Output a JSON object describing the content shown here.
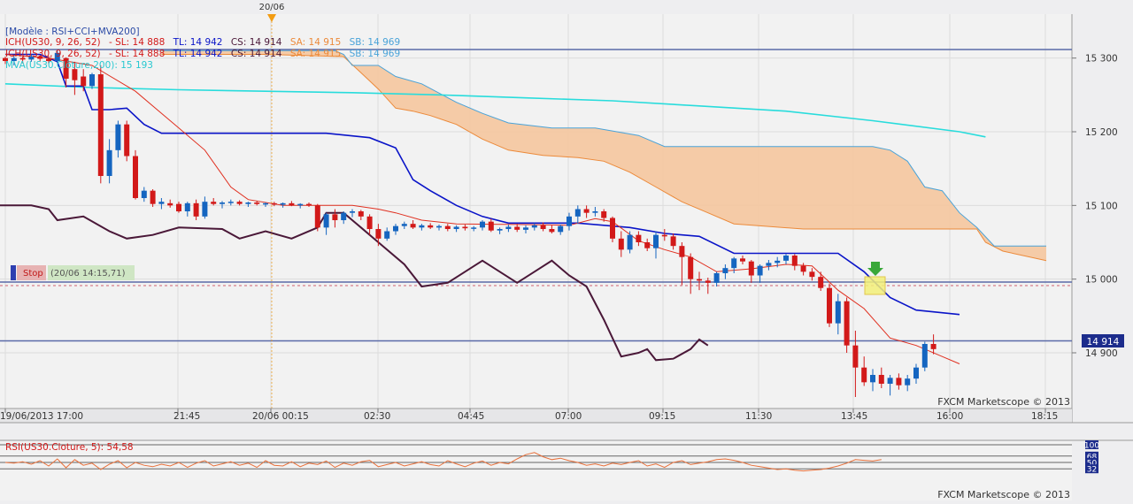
{
  "top_marker": {
    "label": "20/06"
  },
  "legend": {
    "model": "[Modèle : RSI+CCI+MVA200]",
    "ich1": {
      "name": "ICH(US30, 9, 26, 52)",
      "sl": "- SL: 14 888",
      "tl": "TL: 14 942",
      "cs": "CS: 14 914",
      "sa": "SA: 14 915",
      "sb": "SB: 14 969"
    },
    "ich2": {
      "name": "ICH(US30, 9, 26, 52)",
      "sl": "- SL: 14 888",
      "tl": "TL: 14 942",
      "cs": "CS: 14 914",
      "sa": "SA: 14 915",
      "sb": "SB: 14 969"
    },
    "mva": "MVA(US30.Clôture,200): 15 193"
  },
  "stop": {
    "label": "Stop",
    "time": "(20/06 14:15,71)"
  },
  "watermark": "FXCM Marketscope © 2013",
  "rsi_label": "RSI(US30.Cloture, 5): 54,58",
  "current_price": "14 914",
  "colors": {
    "bull": "#1565c0",
    "bear": "#d21919",
    "tenkan": "#e03020",
    "kijun": "#0a14c8",
    "chikou": "#4a1838",
    "cloud_fill": "#f5c79e",
    "span_a": "#ec8a3a",
    "span_b": "#4aa3d8",
    "mva": "#28dcdc",
    "rsi": "#e8703a",
    "marker": "#f39c12"
  },
  "chart_data": {
    "type": "candlestick",
    "instrument": "US30",
    "x_ticks": [
      "19/06/2013 17:00",
      "21:45",
      "20/06 00:15",
      "02:30",
      "04:45",
      "07:00",
      "09:15",
      "11:30",
      "13:45",
      "16:00",
      "18:15"
    ],
    "y_ticks": [
      15300,
      15200,
      15100,
      15000,
      14900
    ],
    "y_tick_labels": [
      "15 300",
      "15 200",
      "15 100",
      "15 000",
      "14 900"
    ],
    "ylim": [
      14830,
      15355
    ],
    "candles": [
      [
        15300,
        15302,
        15292,
        15296
      ],
      [
        15296,
        15304,
        15290,
        15300
      ],
      [
        15300,
        15302,
        15293,
        15298
      ],
      [
        15298,
        15305,
        15295,
        15302
      ],
      [
        15302,
        15304,
        15296,
        15299
      ],
      [
        15299,
        15303,
        15292,
        15296
      ],
      [
        15296,
        15310,
        15294,
        15307
      ],
      [
        15300,
        15301,
        15260,
        15272
      ],
      [
        15285,
        15295,
        15250,
        15270
      ],
      [
        15275,
        15285,
        15255,
        15262
      ],
      [
        15262,
        15280,
        15258,
        15278
      ],
      [
        15278,
        15290,
        15130,
        15140
      ],
      [
        15140,
        15190,
        15130,
        15175
      ],
      [
        15175,
        15215,
        15165,
        15210
      ],
      [
        15210,
        15215,
        15160,
        15167
      ],
      [
        15167,
        15175,
        15108,
        15110
      ],
      [
        15110,
        15125,
        15105,
        15120
      ],
      [
        15120,
        15122,
        15098,
        15102
      ],
      [
        15102,
        15110,
        15095,
        15105
      ],
      [
        15103,
        15108,
        15097,
        15100
      ],
      [
        15102,
        15105,
        15090,
        15092
      ],
      [
        15092,
        15105,
        15085,
        15103
      ],
      [
        15103,
        15108,
        15080,
        15085
      ],
      [
        15085,
        15112,
        15082,
        15105
      ],
      [
        15105,
        15110,
        15100,
        15102
      ],
      [
        15102,
        15106,
        15096,
        15104
      ],
      [
        15104,
        15108,
        15100,
        15105
      ],
      [
        15105,
        15107,
        15100,
        15102
      ],
      [
        15102,
        15105,
        15098,
        15104
      ],
      [
        15104,
        15106,
        15100,
        15102
      ],
      [
        15102,
        15104,
        15098,
        15103
      ],
      [
        15103,
        15105,
        15099,
        15101
      ],
      [
        15101,
        15104,
        15097,
        15103
      ],
      [
        15103,
        15106,
        15099,
        15100
      ],
      [
        15100,
        15103,
        15096,
        15102
      ],
      [
        15102,
        15104,
        15098,
        15100
      ],
      [
        15100,
        15102,
        15065,
        15070
      ],
      [
        15070,
        15090,
        15060,
        15088
      ],
      [
        15088,
        15095,
        15070,
        15080
      ],
      [
        15080,
        15092,
        15075,
        15090
      ],
      [
        15090,
        15095,
        15084,
        15092
      ],
      [
        15092,
        15094,
        15080,
        15085
      ],
      [
        15085,
        15088,
        15060,
        15068
      ],
      [
        15068,
        15075,
        15045,
        15055
      ],
      [
        15055,
        15070,
        15052,
        15065
      ],
      [
        15065,
        15075,
        15060,
        15072
      ],
      [
        15072,
        15078,
        15068,
        15075
      ],
      [
        15075,
        15080,
        15068,
        15070
      ],
      [
        15070,
        15075,
        15066,
        15073
      ],
      [
        15073,
        15076,
        15068,
        15070
      ],
      [
        15070,
        15074,
        15066,
        15072
      ],
      [
        15072,
        15075,
        15065,
        15068
      ],
      [
        15068,
        15073,
        15064,
        15071
      ],
      [
        15071,
        15074,
        15066,
        15069
      ],
      [
        15069,
        15072,
        15065,
        15070
      ],
      [
        15070,
        15080,
        15066,
        15078
      ],
      [
        15078,
        15082,
        15064,
        15066
      ],
      [
        15066,
        15070,
        15061,
        15068
      ],
      [
        15068,
        15074,
        15064,
        15071
      ],
      [
        15071,
        15075,
        15064,
        15067
      ],
      [
        15067,
        15073,
        15062,
        15070
      ],
      [
        15070,
        15076,
        15066,
        15073
      ],
      [
        15073,
        15077,
        15065,
        15068
      ],
      [
        15068,
        15073,
        15062,
        15064
      ],
      [
        15064,
        15074,
        15060,
        15072
      ],
      [
        15072,
        15090,
        15066,
        15085
      ],
      [
        15085,
        15100,
        15075,
        15095
      ],
      [
        15095,
        15100,
        15083,
        15090
      ],
      [
        15090,
        15098,
        15085,
        15092
      ],
      [
        15092,
        15095,
        15078,
        15083
      ],
      [
        15083,
        15085,
        15050,
        15055
      ],
      [
        15055,
        15065,
        15030,
        15040
      ],
      [
        15040,
        15065,
        15035,
        15060
      ],
      [
        15060,
        15065,
        15045,
        15050
      ],
      [
        15050,
        15055,
        15038,
        15042
      ],
      [
        15042,
        15065,
        15028,
        15060
      ],
      [
        15060,
        15068,
        15052,
        15058
      ],
      [
        15058,
        15062,
        15040,
        15045
      ],
      [
        15045,
        15050,
        14992,
        15030
      ],
      [
        15030,
        15035,
        14980,
        15000
      ],
      [
        15000,
        15010,
        14985,
        14998
      ],
      [
        14998,
        15002,
        14980,
        14995
      ],
      [
        14995,
        15010,
        14990,
        15008
      ],
      [
        15008,
        15020,
        15000,
        15015
      ],
      [
        15015,
        15030,
        15008,
        15028
      ],
      [
        15028,
        15032,
        15020,
        15024
      ],
      [
        15024,
        15026,
        14995,
        15005
      ],
      [
        15005,
        15020,
        14995,
        15018
      ],
      [
        15018,
        15026,
        15012,
        15022
      ],
      [
        15022,
        15030,
        15016,
        15025
      ],
      [
        15025,
        15034,
        15020,
        15032
      ],
      [
        15032,
        15034,
        15012,
        15018
      ],
      [
        15018,
        15022,
        15005,
        15010
      ],
      [
        15010,
        15015,
        14998,
        15003
      ],
      [
        15003,
        15010,
        14984,
        14988
      ],
      [
        14988,
        14994,
        14935,
        14940
      ],
      [
        14940,
        14980,
        14925,
        14970
      ],
      [
        14970,
        14975,
        14900,
        14910
      ],
      [
        14910,
        14930,
        14840,
        14880
      ],
      [
        14880,
        14895,
        14855,
        14860
      ],
      [
        14860,
        14878,
        14848,
        14870
      ],
      [
        14870,
        14880,
        14852,
        14858
      ],
      [
        14858,
        14870,
        14842,
        14866
      ],
      [
        14866,
        14872,
        14850,
        14856
      ],
      [
        14856,
        14870,
        14848,
        14865
      ],
      [
        14865,
        14885,
        14858,
        14880
      ],
      [
        14880,
        14915,
        14875,
        14912
      ],
      [
        14912,
        14925,
        14898,
        14905
      ]
    ],
    "tenkan": [
      [
        0,
        15305
      ],
      [
        5,
        15300
      ],
      [
        10,
        15290
      ],
      [
        15,
        15255
      ],
      [
        20,
        15205
      ],
      [
        23,
        15175
      ],
      [
        26,
        15125
      ],
      [
        28,
        15108
      ],
      [
        32,
        15100
      ],
      [
        40,
        15100
      ],
      [
        43,
        15095
      ],
      [
        45,
        15090
      ],
      [
        48,
        15080
      ],
      [
        52,
        15075
      ],
      [
        60,
        15074
      ],
      [
        65,
        15073
      ],
      [
        68,
        15082
      ],
      [
        70,
        15078
      ],
      [
        73,
        15052
      ],
      [
        76,
        15040
      ],
      [
        79,
        15030
      ],
      [
        82,
        15010
      ],
      [
        86,
        15014
      ],
      [
        90,
        15020
      ],
      [
        93,
        15018
      ],
      [
        96,
        14985
      ],
      [
        99,
        14960
      ],
      [
        102,
        14920
      ],
      [
        105,
        14910
      ],
      [
        108,
        14895
      ],
      [
        110,
        14885
      ]
    ],
    "kijun": [
      [
        0,
        15305
      ],
      [
        4,
        15305
      ],
      [
        6,
        15295
      ],
      [
        7,
        15262
      ],
      [
        9,
        15262
      ],
      [
        10,
        15230
      ],
      [
        12,
        15230
      ],
      [
        14,
        15232
      ],
      [
        16,
        15210
      ],
      [
        18,
        15198
      ],
      [
        24,
        15198
      ],
      [
        30,
        15198
      ],
      [
        37,
        15198
      ],
      [
        42,
        15192
      ],
      [
        45,
        15178
      ],
      [
        47,
        15135
      ],
      [
        49,
        15120
      ],
      [
        52,
        15100
      ],
      [
        55,
        15085
      ],
      [
        58,
        15076
      ],
      [
        66,
        15076
      ],
      [
        72,
        15070
      ],
      [
        76,
        15062
      ],
      [
        80,
        15058
      ],
      [
        84,
        15035
      ],
      [
        96,
        15035
      ],
      [
        99,
        15010
      ],
      [
        102,
        14975
      ],
      [
        105,
        14958
      ],
      [
        110,
        14952
      ]
    ],
    "span_a": [
      [
        18,
        15305
      ],
      [
        30,
        15305
      ],
      [
        39,
        15302
      ],
      [
        41,
        15280
      ],
      [
        43,
        15258
      ],
      [
        45,
        15232
      ],
      [
        47,
        15228
      ],
      [
        49,
        15222
      ],
      [
        52,
        15210
      ],
      [
        55,
        15190
      ],
      [
        58,
        15175
      ],
      [
        62,
        15168
      ],
      [
        66,
        15165
      ],
      [
        69,
        15160
      ],
      [
        72,
        15145
      ],
      [
        75,
        15125
      ],
      [
        78,
        15105
      ],
      [
        81,
        15090
      ],
      [
        84,
        15075
      ],
      [
        92,
        15068
      ],
      [
        104,
        15068
      ],
      [
        112,
        15068
      ],
      [
        113,
        15050
      ],
      [
        115,
        15038
      ],
      [
        120,
        15025
      ]
    ],
    "span_b": [
      [
        18,
        15310
      ],
      [
        30,
        15310
      ],
      [
        38,
        15310
      ],
      [
        39,
        15305
      ],
      [
        40,
        15290
      ],
      [
        43,
        15290
      ],
      [
        45,
        15275
      ],
      [
        48,
        15265
      ],
      [
        52,
        15240
      ],
      [
        55,
        15225
      ],
      [
        58,
        15212
      ],
      [
        63,
        15205
      ],
      [
        68,
        15205
      ],
      [
        73,
        15195
      ],
      [
        76,
        15180
      ],
      [
        80,
        15180
      ],
      [
        100,
        15180
      ],
      [
        102,
        15175
      ],
      [
        104,
        15160
      ],
      [
        106,
        15125
      ],
      [
        108,
        15120
      ],
      [
        110,
        15090
      ],
      [
        112,
        15070
      ],
      [
        114,
        15045
      ],
      [
        120,
        15045
      ]
    ],
    "chikou": [
      [
        -1,
        15100
      ],
      [
        3,
        15100
      ],
      [
        5,
        15095
      ],
      [
        6,
        15080
      ],
      [
        9,
        15085
      ],
      [
        12,
        15065
      ],
      [
        14,
        15055
      ],
      [
        17,
        15060
      ],
      [
        20,
        15070
      ],
      [
        25,
        15068
      ],
      [
        27,
        15055
      ],
      [
        30,
        15065
      ],
      [
        33,
        15055
      ],
      [
        36,
        15070
      ],
      [
        37,
        15090
      ],
      [
        39,
        15090
      ],
      [
        41,
        15070
      ],
      [
        43,
        15050
      ],
      [
        46,
        15020
      ],
      [
        48,
        14990
      ],
      [
        51,
        14995
      ],
      [
        53,
        15010
      ],
      [
        55,
        15025
      ],
      [
        57,
        15010
      ],
      [
        59,
        14995
      ],
      [
        61,
        15010
      ],
      [
        63,
        15025
      ],
      [
        65,
        15005
      ],
      [
        67,
        14990
      ],
      [
        69,
        14945
      ],
      [
        71,
        14895
      ],
      [
        73,
        14900
      ],
      [
        74,
        14905
      ],
      [
        75,
        14890
      ],
      [
        77,
        14892
      ],
      [
        79,
        14905
      ],
      [
        80,
        14918
      ],
      [
        81,
        14910
      ]
    ],
    "mva200": [
      [
        0,
        15265
      ],
      [
        10,
        15260
      ],
      [
        20,
        15257
      ],
      [
        30,
        15255
      ],
      [
        40,
        15253
      ],
      [
        50,
        15250
      ],
      [
        60,
        15246
      ],
      [
        70,
        15242
      ],
      [
        80,
        15235
      ],
      [
        90,
        15228
      ],
      [
        100,
        15215
      ],
      [
        110,
        15200
      ],
      [
        113,
        15193
      ]
    ],
    "rsi": {
      "levels": [
        100,
        68,
        50,
        32
      ],
      "values": [
        50,
        48,
        52,
        45,
        55,
        40,
        60,
        35,
        58,
        42,
        48,
        30,
        45,
        55,
        35,
        50,
        42,
        38,
        45,
        40,
        50,
        36,
        48,
        55,
        40,
        46,
        52,
        42,
        48,
        36,
        55,
        42,
        40,
        52,
        38,
        48,
        44,
        54,
        36,
        48,
        42,
        52,
        56,
        38,
        44,
        50,
        40,
        46,
        52,
        44,
        40,
        55,
        46,
        38,
        48,
        54,
        42,
        50,
        46,
        60,
        72,
        78,
        66,
        58,
        62,
        55,
        50,
        42,
        46,
        40,
        48,
        44,
        50,
        55,
        40,
        46,
        36,
        50,
        55,
        44,
        48,
        52,
        58,
        60,
        56,
        50,
        42,
        38,
        34,
        30,
        32,
        28,
        26,
        28,
        30,
        34,
        40,
        48,
        58,
        56,
        54,
        58
      ]
    }
  }
}
